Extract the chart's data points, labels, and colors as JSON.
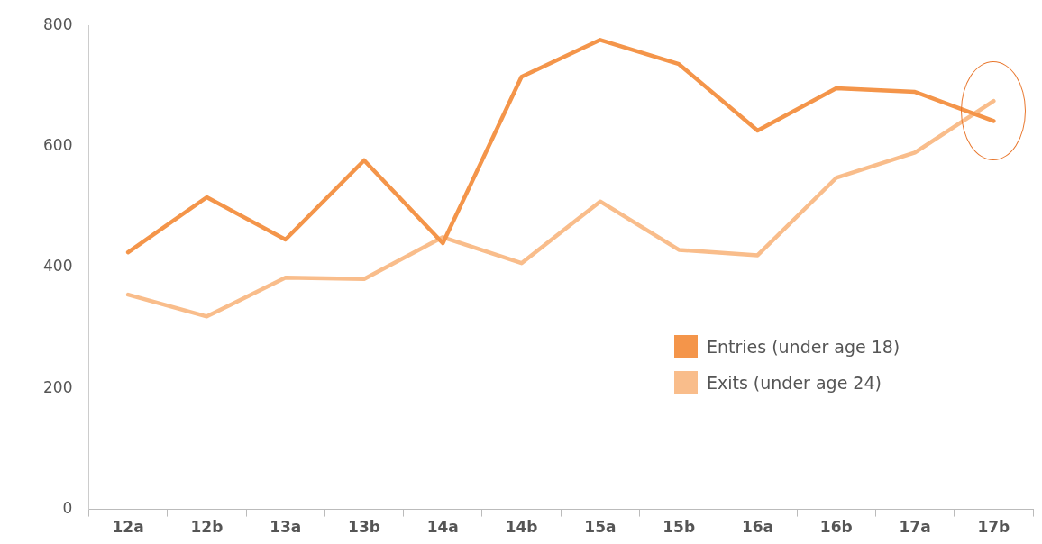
{
  "chart_data": {
    "type": "line",
    "categories": [
      "12a",
      "12b",
      "13a",
      "13b",
      "14a",
      "14b",
      "15a",
      "15b",
      "16a",
      "16b",
      "17a",
      "17b"
    ],
    "series": [
      {
        "name": "Entries (under age 18)",
        "color": "#f4954a",
        "values": [
          425,
          516,
          446,
          577,
          440,
          715,
          776,
          736,
          626,
          696,
          690,
          642
        ]
      },
      {
        "name": "Exits (under age 24)",
        "color": "#f9bd8b",
        "values": [
          355,
          319,
          383,
          381,
          450,
          407,
          509,
          429,
          420,
          548,
          590,
          675
        ]
      }
    ],
    "ylim": [
      0,
      800
    ],
    "yticks": [
      0,
      200,
      400,
      600,
      800
    ],
    "grid": false,
    "legend": "bottom right",
    "marker": "none",
    "line_style": "solid"
  }
}
